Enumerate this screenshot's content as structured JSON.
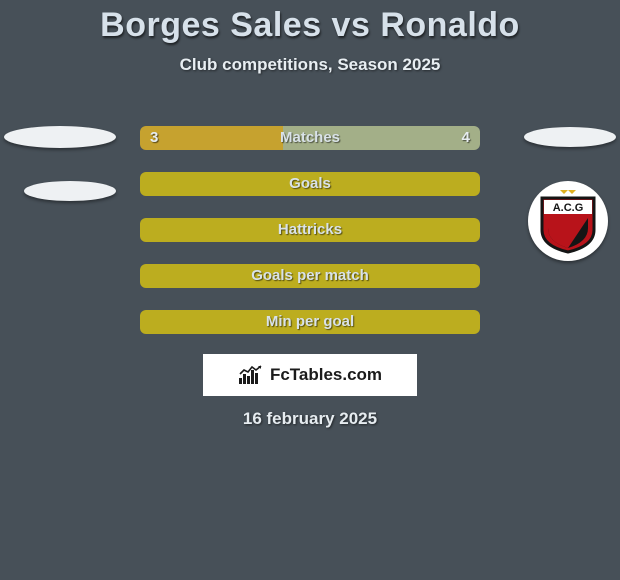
{
  "title": "Borges Sales vs Ronaldo",
  "subtitle": "Club competitions, Season 2025",
  "date": "16 february 2025",
  "brand": {
    "label": "FcTables.com"
  },
  "colors": {
    "left": "#c6a22f",
    "right": "#a3af88",
    "full": "#bcad1f",
    "logo_red": "#b8131a",
    "logo_black": "#151515",
    "logo_gold": "#e0b020"
  },
  "club_right": {
    "text": "A.C.G"
  },
  "bars": [
    {
      "label": "Matches",
      "left_value": "3",
      "right_value": "4",
      "left_pct": 42,
      "right_pct": 58,
      "left_color_key": "left",
      "right_color_key": "right",
      "show_values": true
    },
    {
      "label": "Goals",
      "left_value": "",
      "right_value": "",
      "left_pct": 100,
      "right_pct": 0,
      "left_color_key": "full",
      "right_color_key": "right",
      "show_values": false
    },
    {
      "label": "Hattricks",
      "left_value": "",
      "right_value": "",
      "left_pct": 100,
      "right_pct": 0,
      "left_color_key": "full",
      "right_color_key": "right",
      "show_values": false
    },
    {
      "label": "Goals per match",
      "left_value": "",
      "right_value": "",
      "left_pct": 100,
      "right_pct": 0,
      "left_color_key": "full",
      "right_color_key": "right",
      "show_values": false
    },
    {
      "label": "Min per goal",
      "left_value": "",
      "right_value": "",
      "left_pct": 100,
      "right_pct": 0,
      "left_color_key": "full",
      "right_color_key": "right",
      "show_values": false
    }
  ]
}
